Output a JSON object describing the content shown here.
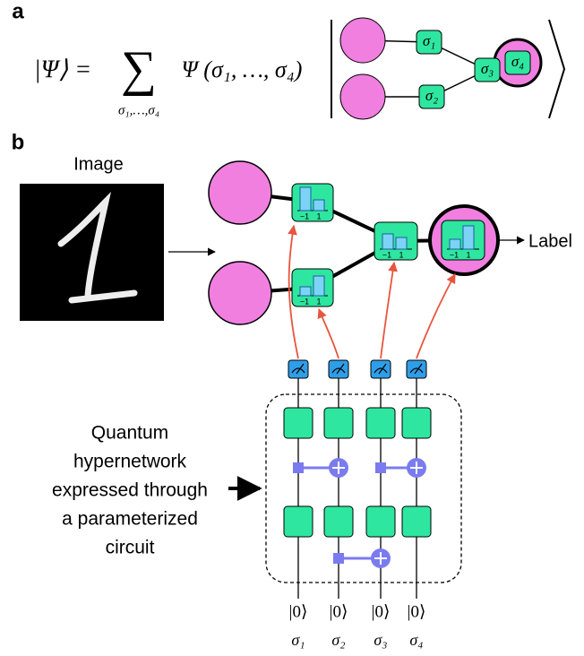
{
  "panel_a": {
    "label": "a",
    "lhs": "|Ψ⟩ =",
    "sum": "∑",
    "sum_index": "σ₁,…,σ₄",
    "term": "Ψ (σ₁, …, σ₄)",
    "nodes": [
      "σ₁",
      "σ₂",
      "σ₃",
      "σ₄"
    ]
  },
  "panel_b": {
    "label": "b",
    "input_label": "Image",
    "output_label": "Label",
    "hypernetwork_label": [
      "Quantum",
      "hypernetwork",
      "expressed through",
      "a parameterized",
      "circuit"
    ],
    "axis_ticks": [
      "−1",
      "1"
    ],
    "qubit_states": [
      "|0⟩",
      "|0⟩",
      "|0⟩",
      "|0⟩"
    ],
    "qubit_labels": [
      "σ₁",
      "σ₂",
      "σ₃",
      "σ₄"
    ]
  }
}
